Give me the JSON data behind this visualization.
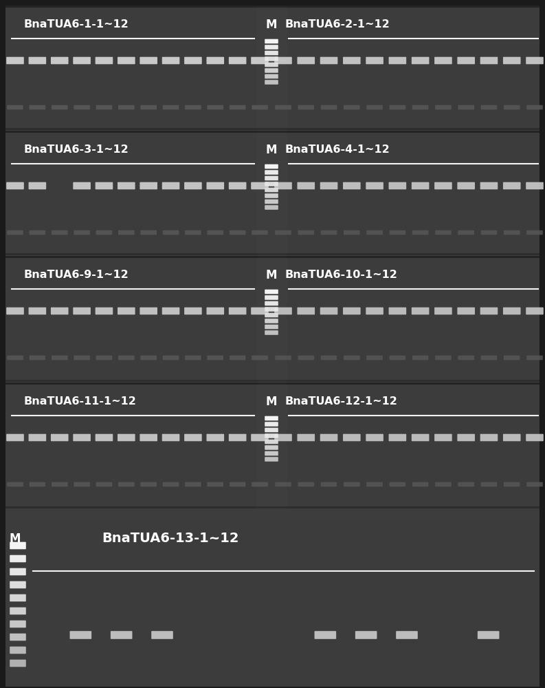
{
  "bg_color": "#3a3a3a",
  "gel_bg": "#3c3c3c",
  "dark_bg": "#1a1a1a",
  "text_color": "#ffffff",
  "fig_width": 7.93,
  "fig_height": 10.0,
  "panels_4": [
    {
      "label_left": "BnaTUA6-1-1~12",
      "label_right": "BnaTUA6-2-1~12"
    },
    {
      "label_left": "BnaTUA6-3-1~12",
      "label_right": "BnaTUA6-4-1~12"
    },
    {
      "label_left": "BnaTUA6-9-1~12",
      "label_right": "BnaTUA6-10-1~12"
    },
    {
      "label_left": "BnaTUA6-11-1~12",
      "label_right": "BnaTUA6-12-1~12"
    }
  ],
  "label_last": "BnaTUA6-13-1~12",
  "marker_label": "M",
  "band_bright": "#e0e0e0",
  "band_dim": "#707070",
  "band_very_dim": "#555555",
  "marker_bright": "#ffffff",
  "marker_dim": "#cccccc"
}
